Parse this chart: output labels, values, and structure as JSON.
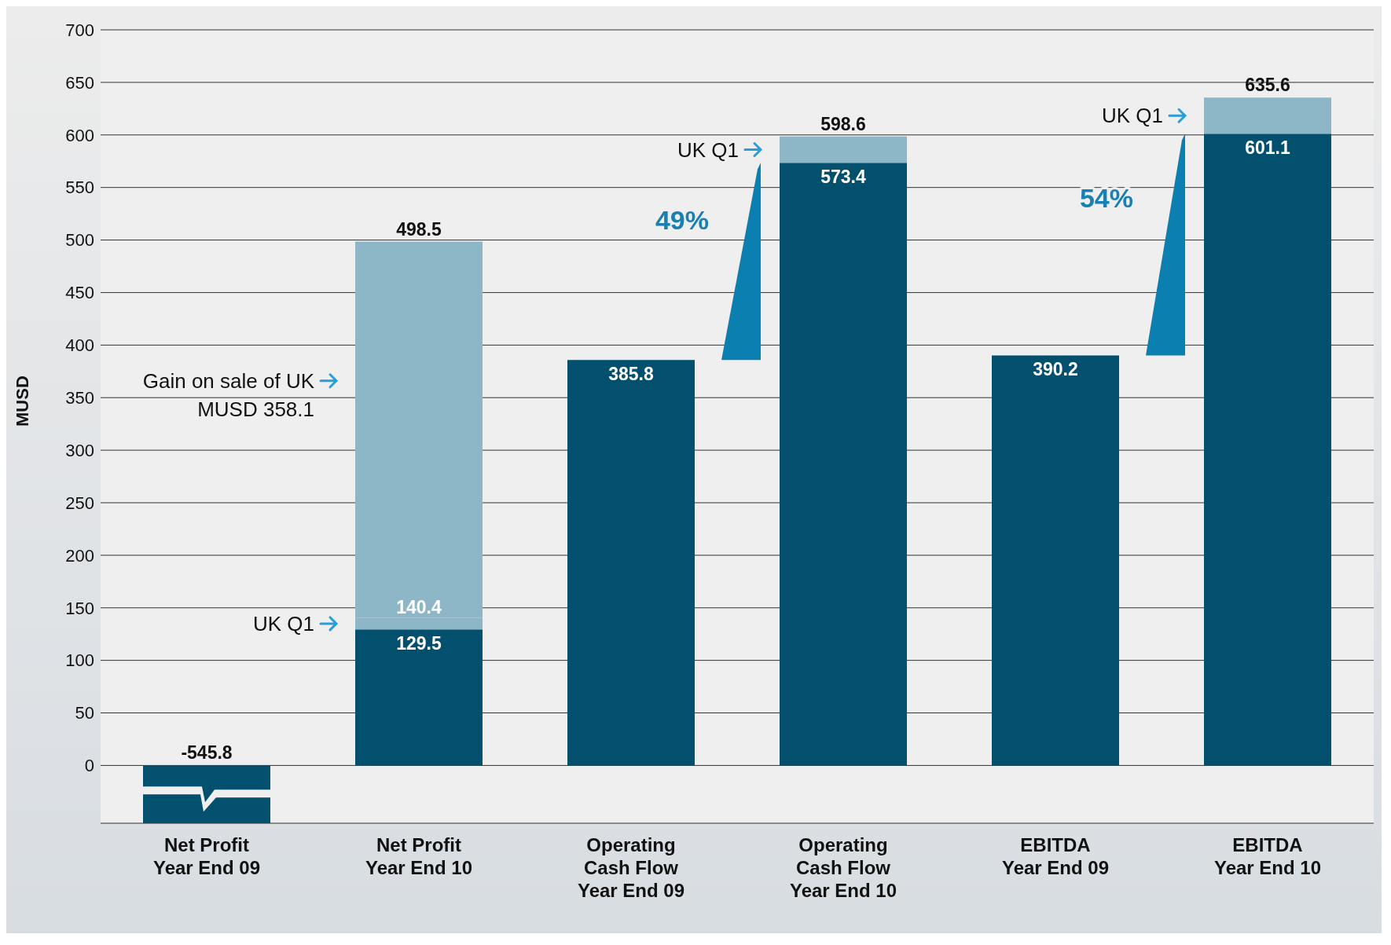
{
  "chart_data": {
    "type": "bar",
    "ylabel": "MUSD",
    "categories": [
      "Net Profit\nYear End 09",
      "Net Profit\nYear End 10",
      "Operating\nCash Flow\nYear End 09",
      "Operating\nCash Flow\nYear End 10",
      "EBITDA\nYear End 09",
      "EBITDA\nYear End 10"
    ],
    "stacked": true,
    "series": [
      {
        "color": "#03506e",
        "values": [
          null,
          129.5,
          385.8,
          573.4,
          390.2,
          601.1
        ],
        "value_labels": [
          "-545.8",
          "129.5",
          "385.8",
          "573.4",
          "390.2",
          "601.1"
        ]
      },
      {
        "color": "#8db6c7",
        "values": [
          null,
          10.9,
          null,
          25.2,
          null,
          34.5
        ]
      },
      {
        "color": "#8db6c7",
        "values": [
          null,
          358.1,
          null,
          null,
          null,
          null
        ]
      }
    ],
    "totals": [
      null,
      "498.5",
      null,
      "598.6",
      null,
      "635.6"
    ],
    "ylim": [
      -55,
      700
    ],
    "yticks": [
      0,
      50,
      100,
      150,
      200,
      250,
      300,
      350,
      400,
      450,
      500,
      550,
      600,
      650,
      700
    ],
    "grid": "y",
    "annotations": [
      "UK Q1",
      "Gain on sale of UK\nMUSD 358.1",
      "UK Q1",
      "49%",
      "UK Q1",
      "54%",
      {
        "text": "140.4",
        "x": "Net Profit\nYear End 10",
        "y": 140.4
      }
    ]
  }
}
